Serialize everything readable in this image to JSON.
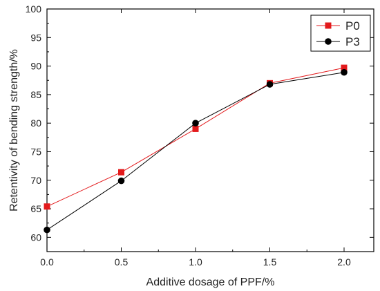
{
  "chart_data": {
    "type": "line",
    "title": "",
    "xlabel": "Additive dosage of PPF/%",
    "ylabel": "Retentivity of bending strength/%",
    "xlim": [
      0.0,
      2.2
    ],
    "ylim": [
      57.5,
      100
    ],
    "x_ticks": [
      "0.0",
      "0.5",
      "1.0",
      "1.5",
      "2.0"
    ],
    "y_ticks": [
      "60",
      "65",
      "70",
      "75",
      "80",
      "85",
      "90",
      "95",
      "100"
    ],
    "x": [
      0.0,
      0.5,
      1.0,
      1.5,
      2.0
    ],
    "series": [
      {
        "name": "P0",
        "values": [
          65.4,
          71.4,
          79.0,
          87.0,
          89.7
        ],
        "color": "#e31a1c",
        "marker": "square"
      },
      {
        "name": "P3",
        "values": [
          61.3,
          69.9,
          80.0,
          86.8,
          88.9
        ],
        "color": "#000000",
        "marker": "circle"
      }
    ],
    "grid": false,
    "legend_position": "top-right"
  }
}
